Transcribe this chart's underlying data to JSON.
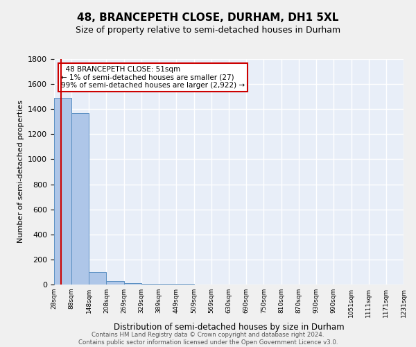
{
  "title": "48, BRANCEPETH CLOSE, DURHAM, DH1 5XL",
  "subtitle": "Size of property relative to semi-detached houses in Durham",
  "xlabel": "Distribution of semi-detached houses by size in Durham",
  "ylabel": "Number of semi-detached properties",
  "property_size": 51,
  "property_label": "48 BRANCEPETH CLOSE: 51sqm",
  "pct_smaller": 1,
  "count_smaller": 27,
  "pct_larger": 99,
  "count_larger": 2922,
  "bin_edges": [
    28,
    88,
    148,
    208,
    269,
    329,
    389,
    449,
    509,
    569,
    630,
    690,
    750,
    810,
    870,
    930,
    990,
    1051,
    1111,
    1171,
    1231
  ],
  "bin_counts": [
    1490,
    1370,
    97,
    25,
    10,
    5,
    4,
    3,
    2,
    2,
    1,
    1,
    1,
    1,
    0,
    0,
    1,
    0,
    0,
    0
  ],
  "bar_color": "#aec6e8",
  "bar_edge_color": "#5a8fc2",
  "highlight_line_color": "#cc0000",
  "annotation_box_color": "#ffffff",
  "annotation_box_edge": "#cc0000",
  "background_color": "#e8eef8",
  "grid_color": "#ffffff",
  "footer_text": "Contains HM Land Registry data © Crown copyright and database right 2024.\nContains public sector information licensed under the Open Government Licence v3.0.",
  "ylim": [
    0,
    1800
  ],
  "yticks": [
    0,
    200,
    400,
    600,
    800,
    1000,
    1200,
    1400,
    1600,
    1800
  ]
}
